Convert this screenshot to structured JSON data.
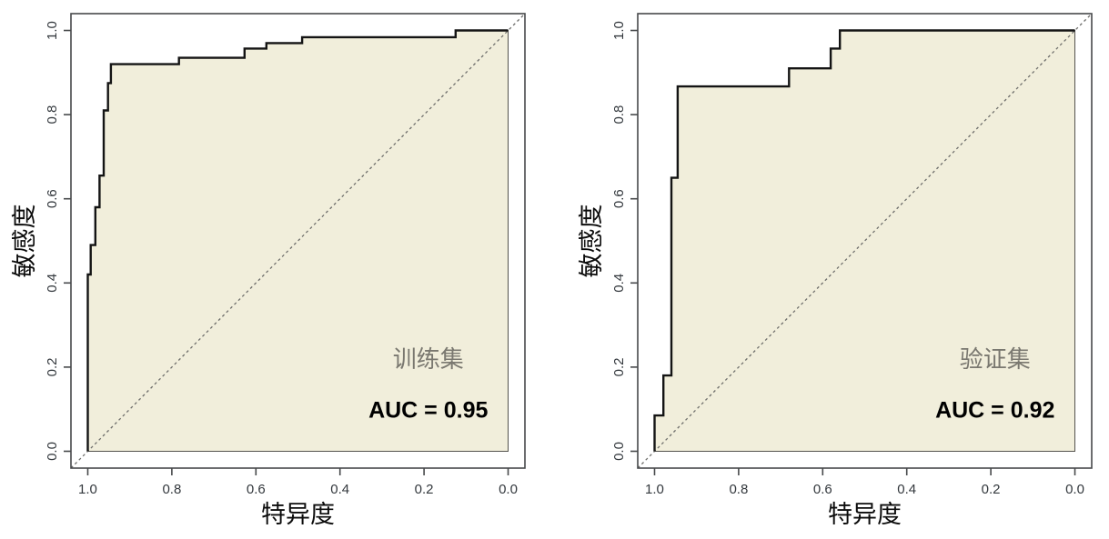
{
  "figure": {
    "background": "#ffffff",
    "description_left_panel": "ROC curve of training set",
    "description_right_panel": "ROC curve of validation set"
  },
  "chart_data": [
    {
      "type": "line",
      "chart_kind": "roc-step-curve",
      "dataset_label": "训练集",
      "auc_label": "AUC = 0.95",
      "auc_value": 0.95,
      "xlabel": "特异度",
      "ylabel": "敏感度",
      "x_ticks": [
        "1.0",
        "0.8",
        "0.6",
        "0.4",
        "0.2",
        "0.0"
      ],
      "y_ticks": [
        "0.0",
        "0.2",
        "0.4",
        "0.6",
        "0.8",
        "1.0"
      ],
      "xlim": [
        1.0,
        0.0
      ],
      "ylim": [
        0.0,
        1.0
      ],
      "x_axis_reversed": true,
      "grid": false,
      "diagonal_reference_line": true,
      "points": [
        [
          1.0,
          0.0
        ],
        [
          1.0,
          0.42
        ],
        [
          0.993,
          0.42
        ],
        [
          0.993,
          0.49
        ],
        [
          0.982,
          0.49
        ],
        [
          0.982,
          0.58
        ],
        [
          0.972,
          0.58
        ],
        [
          0.972,
          0.655
        ],
        [
          0.962,
          0.655
        ],
        [
          0.962,
          0.81
        ],
        [
          0.952,
          0.81
        ],
        [
          0.952,
          0.875
        ],
        [
          0.945,
          0.875
        ],
        [
          0.945,
          0.92
        ],
        [
          0.783,
          0.92
        ],
        [
          0.783,
          0.935
        ],
        [
          0.627,
          0.935
        ],
        [
          0.627,
          0.957
        ],
        [
          0.575,
          0.957
        ],
        [
          0.575,
          0.97
        ],
        [
          0.49,
          0.97
        ],
        [
          0.49,
          0.984
        ],
        [
          0.125,
          0.984
        ],
        [
          0.125,
          1.0
        ],
        [
          0.0,
          1.0
        ]
      ],
      "annotations": {
        "dataset_label_pos": [
          0.19,
          0.2
        ],
        "auc_label_pos": [
          0.19,
          0.08
        ]
      },
      "colors": {
        "fill": "#f1eedb",
        "fill_border": "#54534e",
        "curve": "#141414",
        "diagonal": "#6e6e6b",
        "axis": "#47494b",
        "dataset_label": "#7a7870",
        "auc_text": "#000000"
      }
    },
    {
      "type": "line",
      "chart_kind": "roc-step-curve",
      "dataset_label": "验证集",
      "auc_label": "AUC = 0.92",
      "auc_value": 0.92,
      "xlabel": "特异度",
      "ylabel": "敏感度",
      "x_ticks": [
        "1.0",
        "0.8",
        "0.6",
        "0.4",
        "0.2",
        "0.0"
      ],
      "y_ticks": [
        "0.0",
        "0.2",
        "0.4",
        "0.6",
        "0.8",
        "1.0"
      ],
      "xlim": [
        1.0,
        0.0
      ],
      "ylim": [
        0.0,
        1.0
      ],
      "x_axis_reversed": true,
      "grid": false,
      "diagonal_reference_line": true,
      "points": [
        [
          1.0,
          0.0
        ],
        [
          1.0,
          0.085
        ],
        [
          0.979,
          0.085
        ],
        [
          0.979,
          0.18
        ],
        [
          0.96,
          0.18
        ],
        [
          0.96,
          0.65
        ],
        [
          0.945,
          0.65
        ],
        [
          0.945,
          0.867
        ],
        [
          0.68,
          0.867
        ],
        [
          0.68,
          0.91
        ],
        [
          0.581,
          0.91
        ],
        [
          0.581,
          0.957
        ],
        [
          0.559,
          0.957
        ],
        [
          0.559,
          1.0
        ],
        [
          0.0,
          1.0
        ]
      ],
      "annotations": {
        "dataset_label_pos": [
          0.19,
          0.2
        ],
        "auc_label_pos": [
          0.19,
          0.08
        ]
      },
      "colors": {
        "fill": "#f1eedb",
        "fill_border": "#54534e",
        "curve": "#141414",
        "diagonal": "#6e6e6b",
        "axis": "#47494b",
        "dataset_label": "#7a7870",
        "auc_text": "#000000"
      }
    }
  ]
}
